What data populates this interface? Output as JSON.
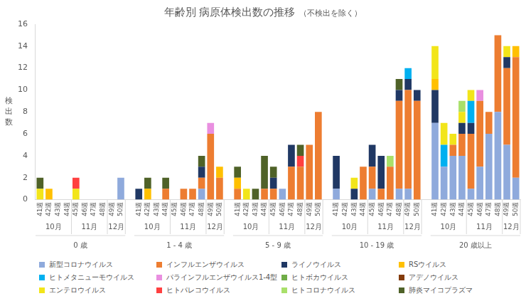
{
  "chart_data": {
    "type": "bar",
    "title": "年齢別 病原体検出数の推移",
    "subtitle": "（不検出を除く）",
    "y_label": "検出数",
    "stacked": true,
    "grid": false,
    "legend": "bottom",
    "ylim": [
      0,
      16
    ],
    "yticks": [
      0,
      2,
      4,
      6,
      8,
      10,
      12,
      14,
      16
    ],
    "categories": [
      "41週",
      "42週",
      "43週",
      "44週",
      "45週",
      "46週",
      "47週",
      "48週",
      "49週",
      "50週",
      null,
      "41週",
      "42週",
      "43週",
      "44週",
      "45週",
      "46週",
      "47週",
      "48週",
      "49週",
      "50週",
      null,
      "41週",
      "42週",
      "43週",
      "44週",
      "45週",
      "46週",
      "47週",
      "48週",
      "49週",
      "50週",
      null,
      "41週",
      "42週",
      "43週",
      "44週",
      "45週",
      "46週",
      "47週",
      "48週",
      "49週",
      "50週",
      null,
      "41週",
      "42週",
      "43週",
      "44週",
      "45週",
      "46週",
      "47週",
      "48週",
      "49週",
      "50週"
    ],
    "months": [
      "10月",
      "10月",
      "10月",
      "10月",
      "11月",
      "11月",
      "11月",
      "11月",
      "12月",
      "12月",
      null,
      "10月",
      "10月",
      "10月",
      "10月",
      "11月",
      "11月",
      "11月",
      "11月",
      "12月",
      "12月",
      null,
      "10月",
      "10月",
      "10月",
      "10月",
      "11月",
      "11月",
      "11月",
      "11月",
      "12月",
      "12月",
      null,
      "10月",
      "10月",
      "10月",
      "10月",
      "11月",
      "11月",
      "11月",
      "11月",
      "12月",
      "12月",
      null,
      "10月",
      "10月",
      "10月",
      "10月",
      "11月",
      "11月",
      "11月",
      "11月",
      "12月",
      "12月"
    ],
    "age_groups": [
      "0 歳",
      "0 歳",
      "0 歳",
      "0 歳",
      "0 歳",
      "0 歳",
      "0 歳",
      "0 歳",
      "0 歳",
      "0 歳",
      null,
      "1 - 4 歳",
      "1 - 4 歳",
      "1 - 4 歳",
      "1 - 4 歳",
      "1 - 4 歳",
      "1 - 4 歳",
      "1 - 4 歳",
      "1 - 4 歳",
      "1 - 4 歳",
      "1 - 4 歳",
      null,
      "5 - 9 歳",
      "5 - 9 歳",
      "5 - 9 歳",
      "5 - 9 歳",
      "5 - 9 歳",
      "5 - 9 歳",
      "5 - 9 歳",
      "5 - 9 歳",
      "5 - 9 歳",
      "5 - 9 歳",
      null,
      "10 - 19 歳",
      "10 - 19 歳",
      "10 - 19 歳",
      "10 - 19 歳",
      "10 - 19 歳",
      "10 - 19 歳",
      "10 - 19 歳",
      "10 - 19 歳",
      "10 - 19 歳",
      "10 - 19 歳",
      null,
      "20 歳以上",
      "20 歳以上",
      "20 歳以上",
      "20 歳以上",
      "20 歳以上",
      "20 歳以上",
      "20 歳以上",
      "20 歳以上",
      "20 歳以上",
      "20 歳以上"
    ],
    "series": [
      {
        "name": "新型コロナウイルス",
        "color": "#8faadc",
        "values": [
          0,
          0,
          0,
          0,
          0,
          0,
          0,
          0,
          0,
          2,
          null,
          0,
          0,
          0,
          0,
          0,
          0,
          0,
          1,
          0,
          0,
          null,
          0,
          0,
          0,
          0,
          0,
          1,
          0,
          0,
          0,
          0,
          null,
          1,
          0,
          0,
          0,
          1,
          0,
          0,
          1,
          1,
          0,
          null,
          7,
          3,
          4,
          4,
          1,
          3,
          6,
          8,
          5,
          2
        ]
      },
      {
        "name": "インフルエンザウイルス",
        "color": "#ed7d31",
        "values": [
          0,
          0,
          0,
          0,
          0,
          0,
          0,
          0,
          0,
          0,
          null,
          0,
          0,
          0,
          1,
          0,
          1,
          1,
          1,
          6,
          2,
          null,
          1,
          0,
          0,
          1,
          1,
          0,
          3,
          3,
          5,
          8,
          null,
          0,
          0,
          0,
          3,
          2,
          1,
          3,
          8,
          9,
          9,
          null,
          0,
          0,
          1,
          2,
          5,
          6,
          2,
          7,
          7,
          11
        ]
      },
      {
        "name": "ライノウイルス",
        "color": "#203864",
        "values": [
          0,
          0,
          0,
          0,
          0,
          0,
          0,
          0,
          0,
          0,
          null,
          1,
          0,
          0,
          0,
          0,
          0,
          0,
          1,
          0,
          0,
          null,
          0,
          0,
          0,
          0,
          1,
          0,
          2,
          0,
          0,
          0,
          null,
          3,
          0,
          1,
          0,
          2,
          3,
          0,
          1,
          1,
          1,
          null,
          3,
          0,
          0,
          1,
          1,
          0,
          0,
          0,
          1,
          0
        ]
      },
      {
        "name": "RSウイルス",
        "color": "#ffc000",
        "values": [
          0,
          1,
          0,
          0,
          0,
          0,
          0,
          0,
          0,
          0,
          null,
          0,
          1,
          0,
          0,
          0,
          0,
          0,
          0,
          0,
          1,
          null,
          1,
          0,
          0,
          0,
          0,
          0,
          0,
          0,
          0,
          0,
          null,
          0,
          0,
          0,
          0,
          0,
          0,
          0,
          0,
          0,
          0,
          null,
          1,
          0,
          0,
          0,
          0,
          0,
          0,
          0,
          0,
          1
        ]
      },
      {
        "name": "ヒトメタニューモウイルス",
        "color": "#00b0f0",
        "values": [
          0,
          0,
          0,
          0,
          0,
          0,
          0,
          0,
          0,
          0,
          null,
          0,
          0,
          0,
          0,
          0,
          0,
          0,
          0,
          0,
          0,
          null,
          0,
          0,
          0,
          0,
          0,
          0,
          0,
          0,
          0,
          0,
          null,
          0,
          0,
          0,
          0,
          0,
          0,
          0,
          0,
          1,
          0,
          null,
          0,
          2,
          0,
          0,
          2,
          0,
          0,
          0,
          0,
          0
        ]
      },
      {
        "name": "パラインフルエンザウイルス1-4型",
        "color": "#e98fe0",
        "values": [
          0,
          0,
          0,
          0,
          0,
          0,
          0,
          0,
          0,
          0,
          null,
          0,
          0,
          0,
          0,
          0,
          0,
          0,
          0,
          1,
          0,
          null,
          0,
          0,
          0,
          0,
          0,
          0,
          0,
          0,
          0,
          0,
          null,
          0,
          0,
          0,
          0,
          0,
          0,
          0,
          0,
          0,
          0,
          null,
          0,
          0,
          0,
          0,
          0,
          1,
          0,
          0,
          0,
          0
        ]
      },
      {
        "name": "ヒトボカウイルス",
        "color": "#70ad47",
        "values": [
          0,
          0,
          0,
          0,
          0,
          0,
          0,
          0,
          0,
          0,
          null,
          0,
          0,
          0,
          0,
          0,
          0,
          0,
          0,
          0,
          0,
          null,
          0,
          0,
          0,
          0,
          0,
          0,
          0,
          0,
          0,
          0,
          null,
          0,
          0,
          0,
          0,
          0,
          0,
          0,
          0,
          0,
          0,
          null,
          0,
          0,
          0,
          0,
          0,
          0,
          0,
          0,
          0,
          0
        ]
      },
      {
        "name": "アデノウイルス",
        "color": "#843c0c",
        "values": [
          0,
          0,
          0,
          0,
          0,
          0,
          0,
          0,
          0,
          0,
          null,
          0,
          0,
          0,
          0,
          0,
          0,
          0,
          0,
          0,
          0,
          null,
          0,
          0,
          0,
          0,
          0,
          0,
          0,
          0,
          0,
          0,
          null,
          0,
          0,
          0,
          0,
          0,
          0,
          0,
          0,
          0,
          0,
          null,
          0,
          0,
          0,
          0,
          0,
          0,
          0,
          0,
          0,
          0
        ]
      },
      {
        "name": "エンテロウイルス",
        "color": "#f2e51a",
        "values": [
          1,
          0,
          0,
          0,
          1,
          0,
          0,
          0,
          0,
          0,
          null,
          0,
          0,
          0,
          0,
          0,
          0,
          0,
          0,
          0,
          0,
          null,
          0,
          1,
          0,
          0,
          0,
          0,
          0,
          0,
          0,
          0,
          null,
          0,
          0,
          1,
          0,
          0,
          0,
          0,
          0,
          0,
          0,
          null,
          3,
          2,
          1,
          1,
          1,
          0,
          0,
          0,
          1,
          0
        ]
      },
      {
        "name": "ヒトパレコウイルス",
        "color": "#ff4040",
        "values": [
          0,
          0,
          0,
          0,
          1,
          0,
          0,
          0,
          0,
          0,
          null,
          0,
          0,
          0,
          0,
          0,
          0,
          0,
          0,
          0,
          0,
          null,
          0,
          0,
          0,
          0,
          0,
          0,
          0,
          1,
          0,
          0,
          null,
          0,
          0,
          0,
          0,
          0,
          0,
          0,
          0,
          0,
          0,
          null,
          0,
          0,
          0,
          0,
          0,
          0,
          0,
          0,
          0,
          0
        ]
      },
      {
        "name": "ヒトコロナウイルス",
        "color": "#a9e06a",
        "values": [
          0,
          0,
          0,
          0,
          0,
          0,
          0,
          0,
          0,
          0,
          null,
          0,
          0,
          0,
          0,
          0,
          0,
          0,
          0,
          0,
          0,
          null,
          0,
          0,
          0,
          0,
          0,
          0,
          0,
          0,
          0,
          0,
          null,
          0,
          0,
          0,
          0,
          0,
          0,
          1,
          0,
          0,
          0,
          null,
          0,
          0,
          0,
          1,
          0,
          0,
          0,
          0,
          0,
          0
        ]
      },
      {
        "name": "肺炎マイコプラズマ",
        "color": "#4f6228",
        "values": [
          1,
          0,
          0,
          0,
          0,
          0,
          0,
          0,
          0,
          0,
          null,
          0,
          1,
          0,
          1,
          0,
          0,
          0,
          1,
          0,
          0,
          null,
          1,
          0,
          1,
          3,
          1,
          0,
          0,
          1,
          0,
          0,
          null,
          0,
          0,
          0,
          0,
          0,
          0,
          0,
          1,
          0,
          0,
          null,
          0,
          0,
          0,
          0,
          0,
          0,
          0,
          0,
          0,
          0
        ]
      }
    ]
  }
}
